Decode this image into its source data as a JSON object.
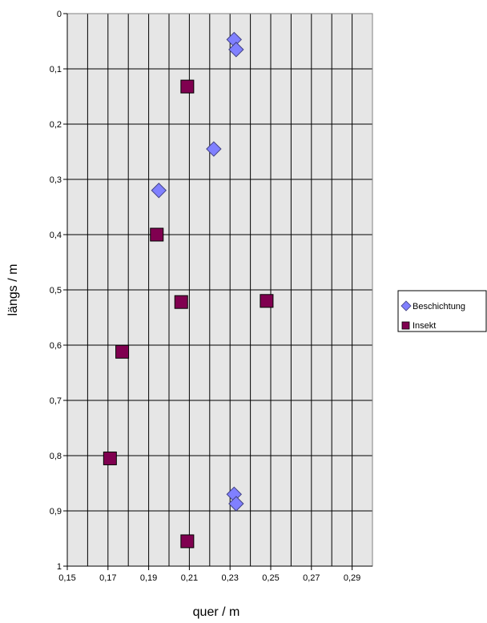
{
  "chart_data": {
    "type": "scatter",
    "xlabel": "quer / m",
    "ylabel": "längs / m",
    "xlim": [
      0.15,
      0.3
    ],
    "ylim": [
      0,
      1
    ],
    "y_reversed": true,
    "x_tick_labels": [
      "0,15",
      "0,17",
      "0,19",
      "0,21",
      "0,23",
      "0,25",
      "0,27",
      "0,29"
    ],
    "y_tick_labels": [
      "0",
      "0,1",
      "0,2",
      "0,3",
      "0,4",
      "0,5",
      "0,6",
      "0,7",
      "0,8",
      "0,9",
      "1"
    ],
    "grid": true,
    "legend_position": "right",
    "series": [
      {
        "name": "Beschichtung",
        "marker": "diamond",
        "color": "#8080ff",
        "points": [
          {
            "x": 0.232,
            "y": 0.047
          },
          {
            "x": 0.233,
            "y": 0.065
          },
          {
            "x": 0.222,
            "y": 0.245
          },
          {
            "x": 0.195,
            "y": 0.32
          },
          {
            "x": 0.232,
            "y": 0.87
          },
          {
            "x": 0.233,
            "y": 0.887
          }
        ]
      },
      {
        "name": "Insekt",
        "marker": "square",
        "color": "#800050",
        "points": [
          {
            "x": 0.209,
            "y": 0.132
          },
          {
            "x": 0.194,
            "y": 0.4
          },
          {
            "x": 0.206,
            "y": 0.522
          },
          {
            "x": 0.248,
            "y": 0.52
          },
          {
            "x": 0.177,
            "y": 0.612
          },
          {
            "x": 0.171,
            "y": 0.805
          },
          {
            "x": 0.209,
            "y": 0.955
          }
        ]
      }
    ]
  }
}
